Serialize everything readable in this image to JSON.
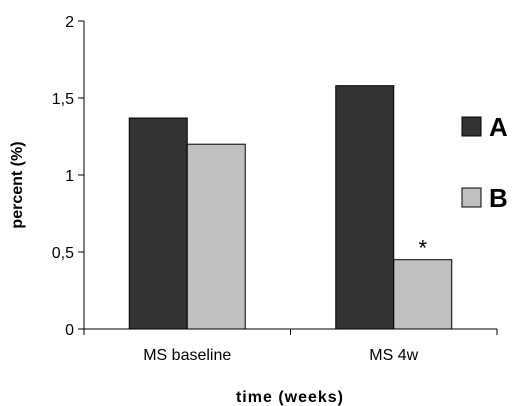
{
  "chart_data": {
    "type": "bar",
    "categories": [
      "MS baseline",
      "MS 4w"
    ],
    "series": [
      {
        "name": "A",
        "values": [
          1.37,
          1.58
        ],
        "color": "#333333"
      },
      {
        "name": "B",
        "values": [
          1.2,
          0.45
        ],
        "color": "#c0c0c0"
      }
    ],
    "ylabel": "percent (%)",
    "xlabel": "time (weeks)",
    "ylim": [
      0,
      2
    ],
    "yticks": [
      {
        "value": 0,
        "label": "0"
      },
      {
        "value": 0.5,
        "label": "0,5"
      },
      {
        "value": 1,
        "label": "1"
      },
      {
        "value": 1.5,
        "label": "1,5"
      },
      {
        "value": 2,
        "label": "2"
      }
    ],
    "annotations": [
      {
        "text": "*",
        "category": "MS 4w",
        "series": "B"
      }
    ],
    "grid": false,
    "legend_position": "right"
  }
}
